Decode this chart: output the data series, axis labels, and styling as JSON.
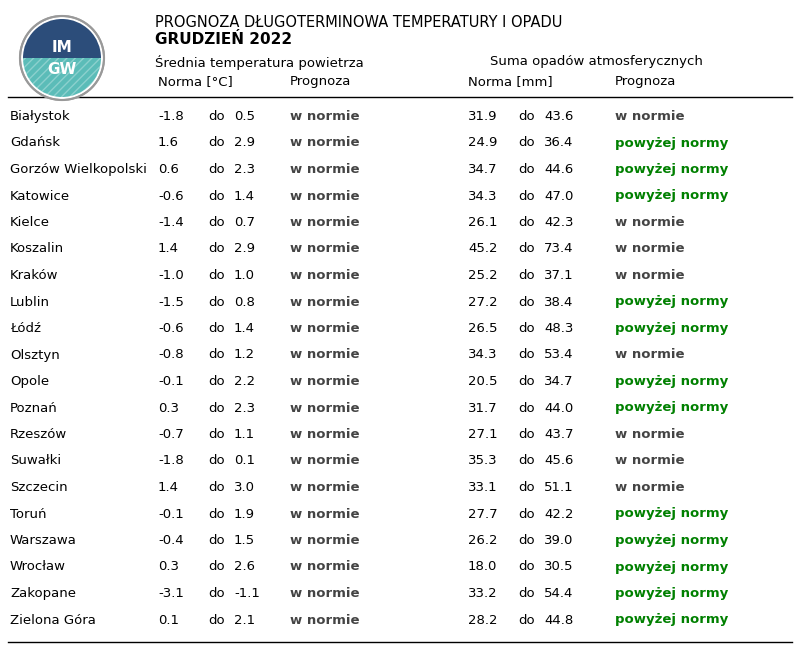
{
  "title1": "PROGNOZA DŁUGOTERMINOWA TEMPERATURY I OPADU",
  "title2": "GRUDZIEŃ 2022",
  "header1": "Średnia temperatura powietrza",
  "header2": "Suma opadów atmosferycznych",
  "subheader_norma_temp": "Norma [°C]",
  "subheader_prognoza": "Prognoza",
  "subheader_norma_rain": "Norma [mm]",
  "subheader_prognoza2": "Prognoza",
  "cities": [
    "Białystok",
    "Gdańsk",
    "Gorzów Wielkopolski",
    "Katowice",
    "Kielce",
    "Koszalin",
    "Kraków",
    "Lublin",
    "Łódź",
    "Olsztyn",
    "Opole",
    "Poznań",
    "Rzeszów",
    "Suwałki",
    "Szczecin",
    "Toruń",
    "Warszawa",
    "Wrocław",
    "Zakopane",
    "Zielona Góra"
  ],
  "temp_norm_low": [
    -1.8,
    1.6,
    0.6,
    -0.6,
    -1.4,
    1.4,
    -1.0,
    -1.5,
    -0.6,
    -0.8,
    -0.1,
    0.3,
    -0.7,
    -1.8,
    1.4,
    -0.1,
    -0.4,
    0.3,
    -3.1,
    0.1
  ],
  "temp_norm_high": [
    0.5,
    2.9,
    2.3,
    1.4,
    0.7,
    2.9,
    1.0,
    0.8,
    1.4,
    1.2,
    2.2,
    2.3,
    1.1,
    0.1,
    3.0,
    1.9,
    1.5,
    2.6,
    -1.1,
    2.1
  ],
  "temp_prognoza": [
    "w normie",
    "w normie",
    "w normie",
    "w normie",
    "w normie",
    "w normie",
    "w normie",
    "w normie",
    "w normie",
    "w normie",
    "w normie",
    "w normie",
    "w normie",
    "w normie",
    "w normie",
    "w normie",
    "w normie",
    "w normie",
    "w normie",
    "w normie"
  ],
  "rain_norm_low": [
    31.9,
    24.9,
    34.7,
    34.3,
    26.1,
    45.2,
    25.2,
    27.2,
    26.5,
    34.3,
    20.5,
    31.7,
    27.1,
    35.3,
    33.1,
    27.7,
    26.2,
    18.0,
    33.2,
    28.2
  ],
  "rain_norm_high": [
    43.6,
    36.4,
    44.6,
    47.0,
    42.3,
    73.4,
    37.1,
    38.4,
    48.3,
    53.4,
    34.7,
    44.0,
    43.7,
    45.6,
    51.1,
    42.2,
    39.0,
    30.5,
    54.4,
    44.8
  ],
  "rain_prognoza": [
    "w normie",
    "powyżej normy",
    "powyżej normy",
    "powyżej normy",
    "w normie",
    "w normie",
    "w normie",
    "powyżej normy",
    "powyżej normy",
    "w normie",
    "powyżej normy",
    "powyżej normy",
    "w normie",
    "w normie",
    "w normie",
    "powyżej normy",
    "powyżej normy",
    "powyżej normy",
    "powyżej normy",
    "powyżej normy"
  ],
  "rain_prognoza_green": [
    false,
    true,
    true,
    true,
    false,
    false,
    false,
    true,
    true,
    false,
    true,
    true,
    false,
    false,
    false,
    true,
    true,
    true,
    true,
    true
  ],
  "bg_color": "#ffffff",
  "font_size": 9.5,
  "logo_color_teal": "#5bbcb8",
  "logo_color_navy": "#2a4a7f",
  "logo_color_gray": "#888888"
}
